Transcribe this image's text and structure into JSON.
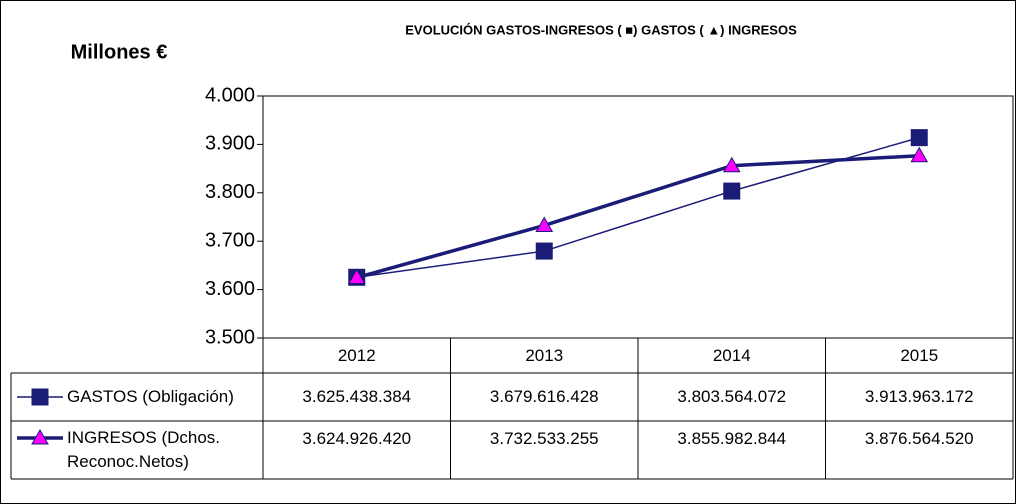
{
  "chart_data": {
    "type": "line",
    "title": "EVOLUCIÓN  GASTOS-INGRESOS   (          ■) GASTOS    (      ▲) INGRESOS",
    "y_label": "Millones €",
    "categories": [
      "2012",
      "2013",
      "2014",
      "2015"
    ],
    "series": [
      {
        "name": "GASTOS (Obligación)",
        "color": "#1b1b78",
        "marker": "square",
        "marker_color": "#1b1b78",
        "values": [
          3625.438384,
          3679.616428,
          3803.564072,
          3913.963172
        ],
        "value_labels": [
          "3.625.438.384",
          "3.679.616.428",
          "3.803.564.072",
          "3.913.963.172"
        ]
      },
      {
        "name": "INGRESOS (Dchos. Reconoc.Netos)",
        "color": "#1b1b78",
        "marker": "triangle",
        "marker_color": "#ff00ff",
        "values": [
          3624.92642,
          3732.533255,
          3855.982844,
          3876.56452
        ],
        "value_labels": [
          "3.624.926.420",
          "3.732.533.255",
          "3.855.982.844",
          "3.876.564.520"
        ]
      }
    ],
    "ylim": [
      3500,
      4000
    ],
    "yticks": [
      {
        "value": 3500,
        "label": "3.500"
      },
      {
        "value": 3600,
        "label": "3.600"
      },
      {
        "value": 3700,
        "label": "3.700"
      },
      {
        "value": 3800,
        "label": "3.800"
      },
      {
        "value": 3900,
        "label": "3.900"
      },
      {
        "value": 4000,
        "label": "4.000"
      }
    ],
    "grid": false
  }
}
